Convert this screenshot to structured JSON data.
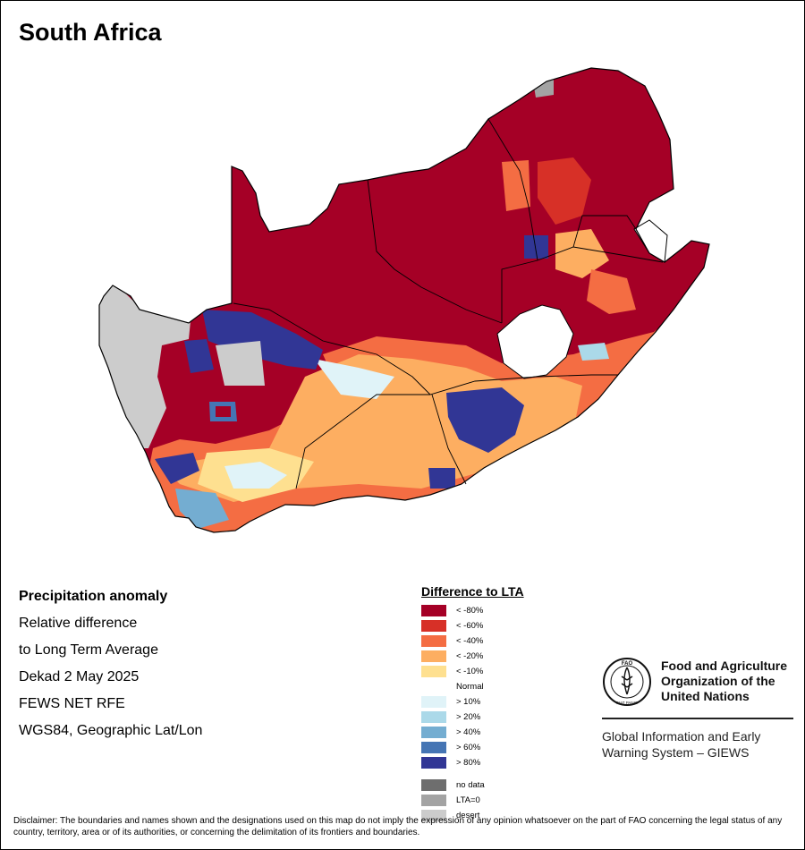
{
  "title": "South Africa",
  "info": {
    "heading": "Precipitation anomaly",
    "line1": "Relative difference",
    "line2": "to Long Term Average",
    "period": "Dekad 2 May 2025",
    "source": "FEWS NET RFE",
    "projection": "WGS84, Geographic Lat/Lon"
  },
  "legend": {
    "title": "Difference to LTA",
    "classes": [
      {
        "label": "< -80%",
        "color": "#a50026"
      },
      {
        "label": "< -60%",
        "color": "#d73027"
      },
      {
        "label": "< -40%",
        "color": "#f46d43"
      },
      {
        "label": "< -20%",
        "color": "#fdae61"
      },
      {
        "label": "< -10%",
        "color": "#fee090"
      },
      {
        "label": "Normal",
        "color": "#ffffff"
      },
      {
        "label": "> 10%",
        "color": "#e0f3f8"
      },
      {
        "label": "> 20%",
        "color": "#abd9e9"
      },
      {
        "label": "> 40%",
        "color": "#74add1"
      },
      {
        "label": "> 60%",
        "color": "#4575b4"
      },
      {
        "label": "> 80%",
        "color": "#313695"
      }
    ],
    "extra": [
      {
        "label": "no data",
        "color": "#6e6e6e"
      },
      {
        "label": "LTA=0",
        "color": "#a3a3a3"
      },
      {
        "label": "desert",
        "color": "#cccccc"
      }
    ]
  },
  "fao": {
    "name_line1": "Food and Agriculture",
    "name_line2": "Organization of the",
    "name_line3": "United Nations",
    "logo_text": "FAO",
    "motto": "FIAT PANIS",
    "giews_line1": "Global Information and Early",
    "giews_line2": "Warning System – GIEWS"
  },
  "disclaimer": "Disclaimer: The boundaries and names shown and the designations used on this map do not imply the expression of any opinion whatsoever on the part of FAO concerning the legal status of any country, territory, area or of its authorities, or concerning the delimitation of its frontiers and boundaries."
}
